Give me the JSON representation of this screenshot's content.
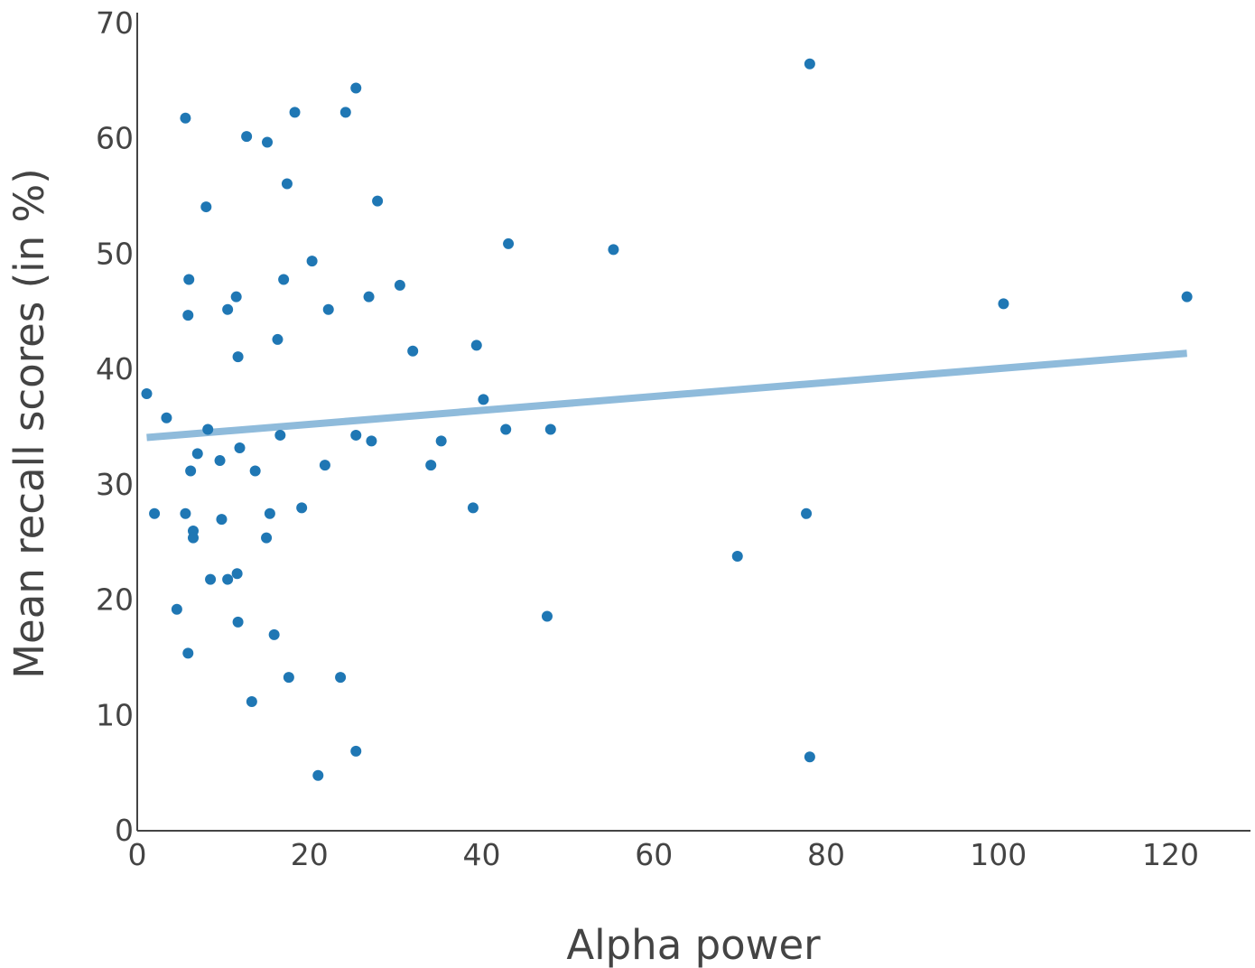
{
  "chart_data": {
    "type": "scatter",
    "xlabel": "Alpha power",
    "ylabel": "Mean recall scores (in %)",
    "xlim": [
      0,
      129
    ],
    "ylim": [
      0,
      70
    ],
    "xticks": [
      0,
      20,
      40,
      60,
      80,
      100,
      120
    ],
    "yticks": [
      0,
      10,
      20,
      30,
      40,
      50,
      60,
      70
    ],
    "grid": false,
    "colors": {
      "points": "#1f77b4",
      "fit_line": "#8fbbdb",
      "axis": "#444444"
    },
    "series": [
      {
        "type": "scatter",
        "points": [
          [
            1.1,
            37.9
          ],
          [
            3.4,
            35.8
          ],
          [
            2.0,
            27.5
          ],
          [
            5.6,
            61.8
          ],
          [
            6.0,
            47.8
          ],
          [
            5.9,
            44.7
          ],
          [
            5.6,
            27.5
          ],
          [
            6.2,
            31.2
          ],
          [
            6.5,
            26.0
          ],
          [
            6.5,
            25.4
          ],
          [
            4.6,
            19.2
          ],
          [
            5.9,
            15.4
          ],
          [
            7.0,
            32.7
          ],
          [
            8.0,
            54.1
          ],
          [
            8.2,
            34.8
          ],
          [
            8.5,
            21.8
          ],
          [
            9.6,
            32.1
          ],
          [
            9.8,
            27.0
          ],
          [
            10.5,
            45.2
          ],
          [
            10.5,
            21.8
          ],
          [
            11.5,
            46.3
          ],
          [
            11.7,
            41.1
          ],
          [
            11.9,
            33.2
          ],
          [
            11.6,
            22.3
          ],
          [
            11.7,
            18.1
          ],
          [
            12.7,
            60.2
          ],
          [
            13.7,
            31.2
          ],
          [
            13.3,
            11.2
          ],
          [
            15.1,
            59.7
          ],
          [
            15.0,
            25.4
          ],
          [
            15.4,
            27.5
          ],
          [
            15.9,
            17.0
          ],
          [
            16.3,
            42.6
          ],
          [
            16.6,
            34.3
          ],
          [
            17.0,
            47.8
          ],
          [
            17.4,
            56.1
          ],
          [
            17.6,
            13.3
          ],
          [
            18.3,
            62.3
          ],
          [
            19.1,
            28.0
          ],
          [
            20.3,
            49.4
          ],
          [
            21.0,
            4.8
          ],
          [
            21.8,
            31.7
          ],
          [
            22.2,
            45.2
          ],
          [
            23.6,
            13.3
          ],
          [
            24.2,
            62.3
          ],
          [
            25.4,
            64.4
          ],
          [
            25.4,
            34.3
          ],
          [
            25.4,
            6.9
          ],
          [
            26.9,
            46.3
          ],
          [
            27.2,
            33.8
          ],
          [
            27.9,
            54.6
          ],
          [
            30.5,
            47.3
          ],
          [
            32.0,
            41.6
          ],
          [
            34.1,
            31.7
          ],
          [
            35.3,
            33.8
          ],
          [
            39.0,
            28.0
          ],
          [
            39.4,
            42.1
          ],
          [
            40.2,
            37.4
          ],
          [
            42.8,
            34.8
          ],
          [
            43.1,
            50.9
          ],
          [
            47.6,
            18.6
          ],
          [
            48.0,
            34.8
          ],
          [
            55.3,
            50.4
          ],
          [
            69.7,
            23.8
          ],
          [
            77.7,
            27.5
          ],
          [
            78.1,
            66.5
          ],
          [
            78.1,
            6.4
          ],
          [
            100.6,
            45.7
          ],
          [
            121.9,
            46.3
          ]
        ]
      },
      {
        "type": "line",
        "points": [
          [
            1.1,
            34.1
          ],
          [
            121.9,
            41.4
          ]
        ]
      }
    ]
  }
}
